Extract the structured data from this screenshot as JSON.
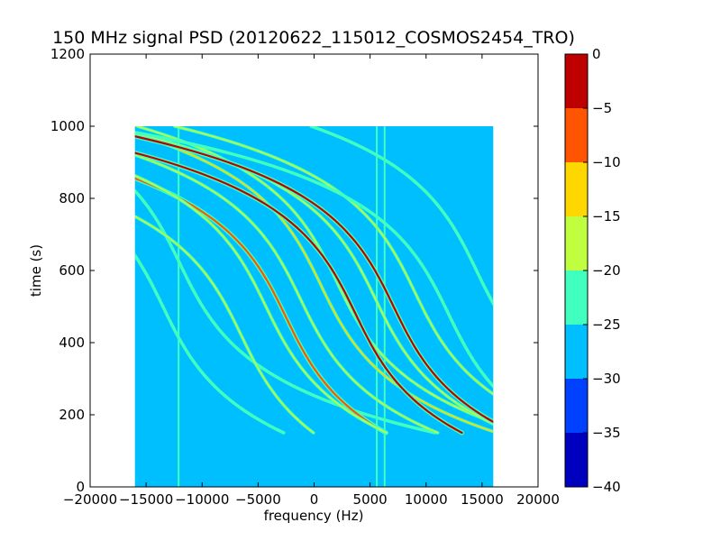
{
  "chart_data": {
    "type": "heatmap",
    "title": "150 MHz signal PSD (20120622_115012_COSMOS2454_TRO)",
    "xlabel": "frequency (Hz)",
    "ylabel": "time (s)",
    "xlim": [
      -20000,
      20000
    ],
    "ylim": [
      0,
      1200
    ],
    "x_ticks": [
      -20000,
      -15000,
      -10000,
      -5000,
      0,
      5000,
      10000,
      15000,
      20000
    ],
    "y_ticks": [
      0,
      200,
      400,
      600,
      800,
      1000,
      1200
    ],
    "data_extent": {
      "x": [
        -16000,
        16000
      ],
      "y": [
        0,
        1000
      ]
    },
    "grid": false,
    "colorbar": {
      "ticks": [
        0,
        -5,
        -10,
        -15,
        -20,
        -25,
        -30,
        -35,
        -40
      ],
      "levels": [
        {
          "range": [
            -40,
            -35
          ],
          "color": "#0000bf"
        },
        {
          "range": [
            -35,
            -30
          ],
          "color": "#0040ff"
        },
        {
          "range": [
            -30,
            -25
          ],
          "color": "#00bfff"
        },
        {
          "range": [
            -25,
            -20
          ],
          "color": "#40ffbf"
        },
        {
          "range": [
            -20,
            -15
          ],
          "color": "#bfff40"
        },
        {
          "range": [
            -15,
            -10
          ],
          "color": "#ffd700"
        },
        {
          "range": [
            -10,
            -5
          ],
          "color": "#ff5500"
        },
        {
          "range": [
            -5,
            0
          ],
          "color": "#bf0000"
        }
      ]
    },
    "background_level": -27.5,
    "traces": [
      {
        "center_freq": -13500,
        "center_time": 500,
        "level": -20
      },
      {
        "center_freq": -12000,
        "center_time": 620,
        "level": -22
      },
      {
        "center_freq": -2500,
        "center_time": 470,
        "level": -5
      },
      {
        "center_freq": -1200,
        "center_time": 520,
        "level": -18
      },
      {
        "center_freq": 600,
        "center_time": 560,
        "level": -10
      },
      {
        "center_freq": 2000,
        "center_time": 570,
        "level": -18
      },
      {
        "center_freq": 3700,
        "center_time": 480,
        "level": -3
      },
      {
        "center_freq": 5500,
        "center_time": 520,
        "level": -18
      },
      {
        "center_freq": 7100,
        "center_time": 500,
        "level": -3
      },
      {
        "center_freq": 9000,
        "center_time": 540,
        "level": -18
      },
      {
        "center_freq": -6500,
        "center_time": 420,
        "level": -16
      },
      {
        "center_freq": -4300,
        "center_time": 500,
        "level": -18
      },
      {
        "center_freq": 12000,
        "center_time": 480,
        "level": -20
      },
      {
        "center_freq": 14500,
        "center_time": 600,
        "level": -20
      }
    ],
    "vertical_lines": [
      {
        "freq": -12100,
        "level": -22
      },
      {
        "freq": 5600,
        "level": -20
      },
      {
        "freq": 6300,
        "level": -24
      }
    ]
  }
}
